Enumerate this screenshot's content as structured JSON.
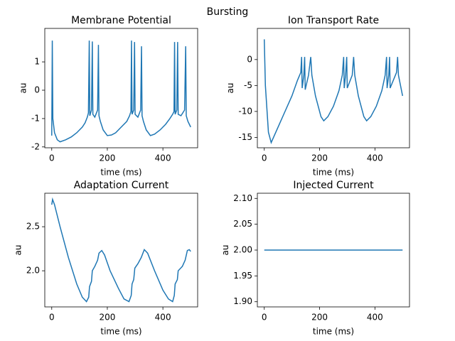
{
  "title": "Bursting",
  "chart_data": [
    {
      "type": "line",
      "title": "Membrane Potential",
      "xlabel": "time (ms)",
      "ylabel": "au",
      "color": "#1f77b4",
      "xlim": [
        -25,
        525
      ],
      "xticks": [
        0,
        200,
        400
      ],
      "ylim": [
        -2.03,
        2.18
      ],
      "yticks": [
        -2,
        -1,
        0,
        1
      ],
      "x": [
        0,
        2,
        4,
        10,
        20,
        30,
        50,
        70,
        90,
        110,
        120,
        128,
        132,
        135,
        137,
        143,
        146,
        148,
        155,
        165,
        168,
        170,
        175,
        185,
        200,
        215,
        230,
        250,
        270,
        280,
        285,
        287,
        289,
        295,
        298,
        300,
        310,
        320,
        323,
        325,
        330,
        340,
        355,
        370,
        390,
        410,
        425,
        435,
        440,
        442,
        444,
        450,
        453,
        455,
        465,
        478,
        482,
        484,
        490,
        500
      ],
      "values": [
        -1.6,
        1.75,
        -1.0,
        -1.5,
        -1.75,
        -1.82,
        -1.75,
        -1.65,
        -1.5,
        -1.3,
        -1.15,
        -0.95,
        -0.8,
        1.75,
        -0.9,
        -0.7,
        1.72,
        -0.85,
        -0.95,
        -0.7,
        1.6,
        -0.9,
        -1.1,
        -1.4,
        -1.6,
        -1.58,
        -1.5,
        -1.3,
        -1.1,
        -0.9,
        -0.75,
        1.75,
        -0.85,
        -0.7,
        1.7,
        -0.85,
        -0.95,
        -0.7,
        1.55,
        -0.9,
        -1.1,
        -1.4,
        -1.6,
        -1.55,
        -1.4,
        -1.2,
        -1.0,
        -0.85,
        -0.75,
        1.7,
        -0.85,
        -0.7,
        1.7,
        -0.85,
        -0.9,
        -0.7,
        1.55,
        -0.9,
        -1.1,
        -1.3
      ]
    },
    {
      "type": "line",
      "title": "Ion Transport Rate",
      "xlabel": "time (ms)",
      "ylabel": "au",
      "color": "#1f77b4",
      "xlim": [
        -25,
        525
      ],
      "xticks": [
        0,
        200,
        400
      ],
      "ylim": [
        -17,
        6
      ],
      "yticks": [
        -15,
        -10,
        -5,
        0
      ],
      "x": [
        0,
        4,
        15,
        25,
        50,
        75,
        100,
        120,
        132,
        135,
        137,
        143,
        146,
        148,
        160,
        168,
        172,
        185,
        205,
        215,
        230,
        250,
        270,
        282,
        287,
        289,
        294,
        298,
        300,
        318,
        323,
        327,
        340,
        360,
        370,
        385,
        405,
        425,
        437,
        442,
        444,
        450,
        453,
        455,
        478,
        482,
        485,
        500
      ],
      "values": [
        3.9,
        -5,
        -14,
        -16,
        -13,
        -10,
        -7,
        -4,
        -2.5,
        0.5,
        -5.5,
        -3,
        0.5,
        -5.8,
        -3,
        0.5,
        -3,
        -7,
        -11,
        -11.8,
        -11,
        -9,
        -6,
        -3,
        0.5,
        -5.5,
        -3,
        0.5,
        -5.5,
        -3,
        0.5,
        -3,
        -7,
        -11,
        -11.8,
        -11,
        -9,
        -6,
        -3,
        0.5,
        -5.5,
        -3,
        0.5,
        -5.5,
        -2.5,
        0.5,
        -3,
        -7
      ]
    },
    {
      "type": "line",
      "title": "Adaptation Current",
      "xlabel": "time (ms)",
      "ylabel": "au",
      "color": "#1f77b4",
      "xlim": [
        -25,
        525
      ],
      "xticks": [
        0,
        200,
        400
      ],
      "ylim": [
        1.59,
        2.88
      ],
      "yticks": [
        {
          "value": 2,
          "label": "2.0"
        },
        2.5
      ],
      "x": [
        0,
        3,
        10,
        30,
        60,
        90,
        110,
        125,
        133,
        136,
        143,
        146,
        155,
        165,
        170,
        180,
        190,
        210,
        240,
        260,
        278,
        286,
        289,
        295,
        299,
        310,
        322,
        333,
        345,
        370,
        400,
        420,
        435,
        441,
        444,
        452,
        455,
        470,
        480,
        488,
        495,
        500
      ],
      "values": [
        2.75,
        2.81,
        2.75,
        2.5,
        2.15,
        1.85,
        1.7,
        1.65,
        1.7,
        1.82,
        1.88,
        2.0,
        2.05,
        2.12,
        2.2,
        2.23,
        2.18,
        2.0,
        1.8,
        1.68,
        1.65,
        1.72,
        1.85,
        1.9,
        2.03,
        2.08,
        2.15,
        2.24,
        2.2,
        2.0,
        1.78,
        1.68,
        1.65,
        1.72,
        1.85,
        1.9,
        2.0,
        2.05,
        2.12,
        2.23,
        2.24,
        2.22
      ]
    },
    {
      "type": "line",
      "title": "Injected Current",
      "xlabel": "time (ms)",
      "ylabel": "au",
      "color": "#1f77b4",
      "xlim": [
        -25,
        525
      ],
      "xticks": [
        0,
        200,
        400
      ],
      "ylim": [
        1.89,
        2.11
      ],
      "yticks": [
        {
          "value": 1.9,
          "label": "1.90"
        },
        {
          "value": 1.95,
          "label": "1.95"
        },
        {
          "value": 2,
          "label": "2.00"
        },
        {
          "value": 2.05,
          "label": "2.05"
        },
        {
          "value": 2.1,
          "label": "2.10"
        }
      ],
      "x": [
        0,
        500
      ],
      "values": [
        2,
        2
      ]
    }
  ]
}
